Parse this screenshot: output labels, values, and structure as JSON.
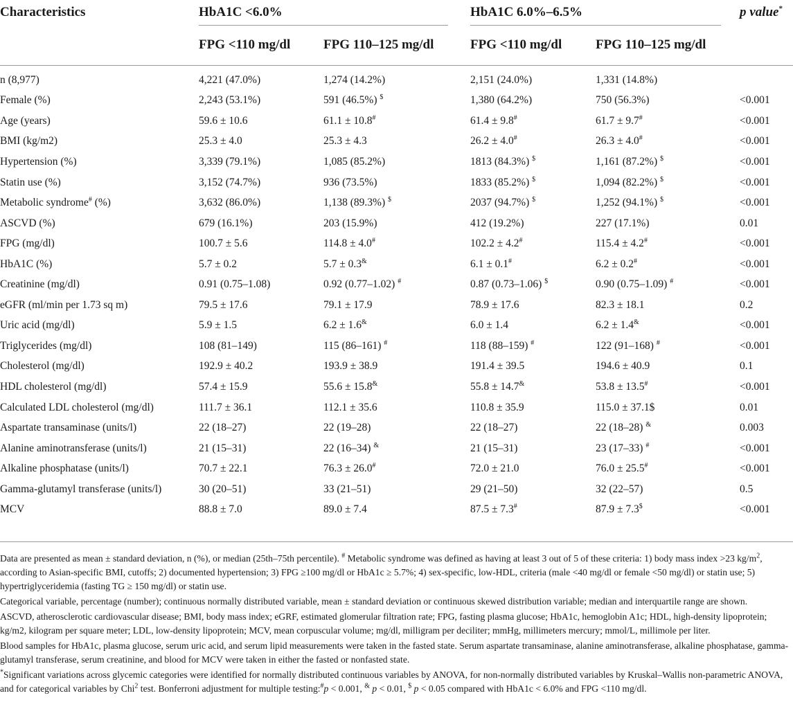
{
  "header": {
    "characteristics": "Characteristics",
    "group1": "HbA1C <6.0%",
    "group2": "HbA1C 6.0%–6.5%",
    "pvalue": "p value",
    "pvalue_mark": "*",
    "sub1": "FPG <110 mg/dl",
    "sub2": "FPG 110–125 mg/dl",
    "sub3": "FPG <110 mg/dl",
    "sub4": "FPG 110–125 mg/dl"
  },
  "rows": [
    {
      "label": "n (8,977)",
      "c1": "4,221 (47.0%)",
      "c2": "1,274 (14.2%)",
      "c3": "2,151 (24.0%)",
      "c4": "1,331 (14.8%)",
      "p": ""
    },
    {
      "label": "Female (%)",
      "c1": "2,243 (53.1%)",
      "c2": "591 (46.5%) ",
      "c2s": "$",
      "c3": "1,380 (64.2%)",
      "c4": "750 (56.3%)",
      "p": "<0.001"
    },
    {
      "label": "Age (years)",
      "c1": "59.6 ± 10.6",
      "c2": "61.1 ± 10.8",
      "c2s": "#",
      "c3": "61.4 ± 9.8",
      "c3s": "#",
      "c4": "61.7 ± 9.7",
      "c4s": "#",
      "p": "<0.001"
    },
    {
      "label": "BMI (kg/m2)",
      "c1": "25.3 ± 4.0",
      "c2": "25.3 ± 4.3",
      "c3": "26.2 ± 4.0",
      "c3s": "#",
      "c4": "26.3 ± 4.0",
      "c4s": "#",
      "p": "<0.001"
    },
    {
      "label": "Hypertension (%)",
      "c1": "3,339 (79.1%)",
      "c2": "1,085 (85.2%)",
      "c3": "1813 (84.3%) ",
      "c3s": "$",
      "c4": "1,161 (87.2%) ",
      "c4s": "$",
      "p": "<0.001"
    },
    {
      "label": "Statin use (%)",
      "c1": "3,152 (74.7%)",
      "c2": "936 (73.5%)",
      "c3": "1833 (85.2%) ",
      "c3s": "$",
      "c4": "1,094 (82.2%) ",
      "c4s": "$",
      "p": "<0.001"
    },
    {
      "label": "Metabolic syndrome",
      "labels": "#",
      "labelt": " (%)",
      "c1": "3,632 (86.0%)",
      "c2": "1,138 (89.3%) ",
      "c2s": "$",
      "c3": "2037 (94.7%) ",
      "c3s": "$",
      "c4": "1,252 (94.1%) ",
      "c4s": "$",
      "p": "<0.001"
    },
    {
      "label": "ASCVD (%)",
      "c1": "679 (16.1%)",
      "c2": "203 (15.9%)",
      "c3": "412 (19.2%)",
      "c4": "227 (17.1%)",
      "p": "0.01"
    },
    {
      "label": "FPG (mg/dl)",
      "c1": "100.7 ± 5.6",
      "c2": "114.8 ± 4.0",
      "c2s": "#",
      "c3": "102.2 ± 4.2",
      "c3s": "#",
      "c4": "115.4 ± 4.2",
      "c4s": "#",
      "p": "<0.001"
    },
    {
      "label": "HbA1C (%)",
      "c1": "5.7 ± 0.2",
      "c2": "5.7 ± 0.3",
      "c2s": "&",
      "c3": "6.1 ± 0.1",
      "c3s": "#",
      "c4": "6.2 ± 0.2",
      "c4s": "#",
      "p": "<0.001"
    },
    {
      "label": "Creatinine (mg/dl)",
      "c1": "0.91 (0.75–1.08)",
      "c2": "0.92 (0.77–1.02) ",
      "c2s": "#",
      "c3": "0.87 (0.73–1.06) ",
      "c3s": "$",
      "c4": "0.90 (0.75–1.09) ",
      "c4s": "#",
      "p": "<0.001"
    },
    {
      "label": "eGFR (ml/min per 1.73 sq m)",
      "c1": "79.5 ± 17.6",
      "c2": "79.1 ± 17.9",
      "c3": "78.9 ± 17.6",
      "c4": "82.3 ± 18.1",
      "p": "0.2"
    },
    {
      "label": "Uric acid (mg/dl)",
      "c1": "5.9 ± 1.5",
      "c2": "6.2 ± 1.6",
      "c2s": "&",
      "c3": "6.0 ± 1.4",
      "c4": "6.2 ± 1.4",
      "c4s": "&",
      "p": "<0.001"
    },
    {
      "label": "Triglycerides (mg/dl)",
      "c1": "108 (81–149)",
      "c2": "115 (86–161) ",
      "c2s": "#",
      "c3": "118 (88–159) ",
      "c3s": "#",
      "c4": "122 (91–168) ",
      "c4s": "#",
      "p": "<0.001"
    },
    {
      "label": "Cholesterol (mg/dl)",
      "c1": "192.9 ± 40.2",
      "c2": "193.9 ± 38.9",
      "c3": "191.4 ± 39.5",
      "c4": "194.6 ± 40.9",
      "p": "0.1"
    },
    {
      "label": "HDL cholesterol (mg/dl)",
      "c1": "57.4 ± 15.9",
      "c2": "55.6 ± 15.8",
      "c2s": "&",
      "c3": "55.8 ± 14.7",
      "c3s": "&",
      "c4": "53.8 ± 13.5",
      "c4s": "#",
      "p": "<0.001"
    },
    {
      "label": "Calculated LDL cholesterol (mg/dl)",
      "c1": "111.7 ± 36.1",
      "c2": "112.1 ± 35.6",
      "c3": "110.8 ± 35.9",
      "c4": "115.0 ± 37.1$",
      "p": "0.01"
    },
    {
      "label": "Aspartate transaminase (units/l)",
      "c1": "22 (18–27)",
      "c2": "22 (19–28)",
      "c3": "22 (18–27)",
      "c4": "22 (18–28) ",
      "c4s": "&",
      "p": "0.003"
    },
    {
      "label": "Alanine aminotransferase (units/l)",
      "c1": "21 (15–31)",
      "c2": "22 (16–34) ",
      "c2s": "&",
      "c3": "21 (15–31)",
      "c4": "23 (17–33) ",
      "c4s": "#",
      "p": "<0.001"
    },
    {
      "label": "Alkaline phosphatase (units/l)",
      "c1": "70.7 ± 22.1",
      "c2": "76.3 ± 26.0",
      "c2s": "#",
      "c3": "72.0 ± 21.0",
      "c4": "76.0 ± 25.5",
      "c4s": "#",
      "p": "<0.001"
    },
    {
      "label": "Gamma-glutamyl transferase (units/l)",
      "c1": "30 (20–51)",
      "c2": "33 (21–51)",
      "c3": "29 (21–50)",
      "c4": "32 (22–57)",
      "p": "0.5"
    },
    {
      "label": "MCV",
      "c1": "88.8 ± 7.0",
      "c2": "89.0 ± 7.4",
      "c3": "87.5 ± 7.3",
      "c3s": "#",
      "c4": "87.9 ± 7.3",
      "c4s": "$",
      "p": "<0.001"
    }
  ],
  "notes": {
    "n1a": "Data are presented as mean ± standard deviation, n (%), or median (25th–75th percentile). ",
    "n1mark": "#",
    "n1b": " Metabolic syndrome was defined as having at least 3 out of 5 of these criteria: 1) body mass index >23 kg/m",
    "n1sup": "2",
    "n1c": ", according to Asian-specific BMI, cutoffs; 2) documented hypertension; 3) FPG ≥100 mg/dl or HbA1c ≥ 5.7%; 4) sex-specific, low-HDL, criteria (male <40 mg/dl or female <50 mg/dl) or statin use; 5) hypertriglyceridemia (fasting TG ≥ 150 mg/dl) or statin use.",
    "n2": "Categorical variable, percentage (number); continuous normally distributed variable, mean ± standard deviation or continuous skewed distribution variable; median and interquartile range are shown.",
    "n3": "ASCVD, atherosclerotic cardiovascular disease; BMI, body mass index; eGRF, estimated glomerular filtration rate; FPG, fasting plasma glucose; HbA1c, hemoglobin A1c; HDL, high-density lipoprotein; kg/m2, kilogram per square meter; LDL, low-density lipoprotein; MCV, mean corpuscular volume; mg/dl, milligram per deciliter; mmHg, millimeters mercury; mmol/L, millimole per liter.",
    "n4": "Blood samples for HbA1c, plasma glucose, serum uric acid, and serum lipid measurements were taken in the fasted state. Serum aspartate transaminase, alanine aminotransferase, alkaline phosphatase, gamma-glutamyl transferase, serum creatinine, and blood for MCV were taken in either the fasted or nonfasted state.",
    "n5mark": "*",
    "n5a": "Significant variations across glycemic categories were identified for normally distributed continuous variables by ANOVA, for non-normally distributed variables by Kruskal–Wallis non-parametric ANOVA, and for categorical variables by Chi",
    "n5sup": "2",
    "n5b": " test. Bonferroni adjustment for multiple testing:",
    "n5m1": "#",
    "n5p1": "p",
    "n5c": " < 0.001, ",
    "n5m2": "&",
    "n5d": " ",
    "n5p2": "p",
    "n5e": " < 0.01, ",
    "n5m3": "$",
    "n5f": " ",
    "n5p3": "p",
    "n5g": " < 0.05 compared with HbA1c < 6.0% and FPG <110 mg/dl."
  }
}
